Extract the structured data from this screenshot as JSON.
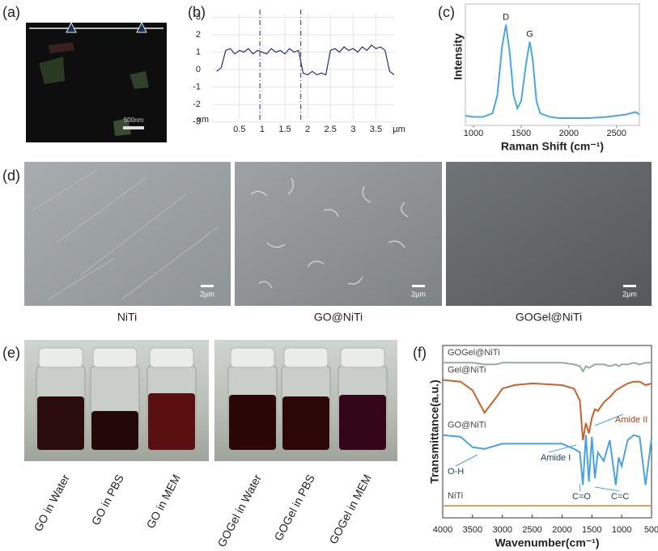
{
  "images": {
    "a": {
      "label": "(a)",
      "scale_bar": "500nm"
    },
    "d": {
      "label": "(d)",
      "items": [
        {
          "caption": "NiTi",
          "scale_bar": "2µm"
        },
        {
          "caption": "GO@NiTi",
          "scale_bar": "2µm"
        },
        {
          "caption": "GOGel@NiTi",
          "scale_bar": "2µm"
        }
      ]
    },
    "e": {
      "label": "(e)",
      "captions": [
        "GO in Water",
        "GO in PBS",
        "GO in MEM",
        "GOGel in Water",
        "GOGel in PBS",
        "GOGel in MEM"
      ]
    }
  },
  "chart_data": [
    {
      "type": "line",
      "panel_label": "(b)",
      "x_label": "µm",
      "y_label": "nm",
      "color": "#2b2f6e",
      "grid": true,
      "x": [
        0.0,
        0.1,
        0.2,
        0.3,
        0.4,
        0.5,
        0.6,
        0.7,
        0.8,
        0.9,
        1.0,
        1.1,
        1.2,
        1.3,
        1.4,
        1.5,
        1.6,
        1.7,
        1.8,
        1.9,
        2.0,
        2.1,
        2.2,
        2.3,
        2.4,
        2.5,
        2.6,
        2.7,
        2.8,
        2.9,
        3.0,
        3.1,
        3.2,
        3.3,
        3.4,
        3.5,
        3.6,
        3.7,
        3.8,
        3.9
      ],
      "values": [
        -0.1,
        0.1,
        1.1,
        1.2,
        0.9,
        1.1,
        1.0,
        1.2,
        0.9,
        1.1,
        1.0,
        0.9,
        1.2,
        1.0,
        1.1,
        0.9,
        1.2,
        1.0,
        1.1,
        -0.2,
        -0.3,
        -0.1,
        -0.3,
        -0.2,
        -0.3,
        1.1,
        1.2,
        1.0,
        1.3,
        1.1,
        1.2,
        1.0,
        1.3,
        1.1,
        1.4,
        1.2,
        1.3,
        1.1,
        -0.1,
        -0.3
      ],
      "markers": [
        0.95,
        1.85
      ],
      "xlim": [
        -0.1,
        3.9
      ],
      "xticks": [
        0.5,
        1,
        1.5,
        2,
        2.5,
        3,
        3.5
      ],
      "ylim": [
        -3.2,
        3.2
      ],
      "yticks": [
        3,
        2,
        1,
        0,
        -1,
        -2,
        -3
      ]
    },
    {
      "type": "line",
      "panel_label": "(c)",
      "x_label": "Raman Shift (cm⁻¹)",
      "y_label": "Intensity",
      "color": "#4aa8e0",
      "peak_labels": [
        "D",
        "G"
      ],
      "x": [
        915,
        1000,
        1100,
        1200,
        1250,
        1300,
        1340,
        1380,
        1420,
        1460,
        1500,
        1550,
        1590,
        1620,
        1660,
        1700,
        1800,
        1900,
        2000,
        2200,
        2400,
        2600,
        2700,
        2740
      ],
      "values": [
        8,
        7,
        7,
        10,
        25,
        65,
        83,
        60,
        25,
        14,
        20,
        50,
        69,
        55,
        20,
        10,
        7,
        6,
        6,
        6,
        7,
        9,
        11,
        9
      ],
      "xlim": [
        915,
        2740
      ],
      "xticks": [
        1000,
        1500,
        2000,
        2500
      ],
      "ylim": [
        0,
        100
      ]
    },
    {
      "type": "line",
      "panel_label": "(f)",
      "x_label": "Wavenumber(cm⁻¹)",
      "y_label": "Transmittance(a.u.)",
      "annotations": [
        "O-H",
        "Amide I",
        "Amide II",
        "C=O",
        "C=C"
      ],
      "x": [
        4000,
        3700,
        3500,
        3300,
        3100,
        3000,
        2800,
        2500,
        2000,
        1800,
        1700,
        1650,
        1600,
        1550,
        1500,
        1450,
        1400,
        1300,
        1200,
        1100,
        1050,
        1000,
        900,
        800,
        700,
        600,
        500
      ],
      "series": [
        {
          "name": "GOGel@NiTi",
          "color": "#8fae9f",
          "values": [
            90,
            90,
            90,
            89,
            89,
            90,
            90,
            90,
            90,
            89,
            88,
            85,
            88,
            87,
            88,
            89,
            89,
            89,
            88,
            89,
            88,
            89,
            89,
            90,
            89,
            90,
            90
          ]
        },
        {
          "name": "Gel@NiTi",
          "color": "#c8622a",
          "values": [
            80,
            79,
            74,
            61,
            70,
            75,
            77,
            78,
            77,
            75,
            68,
            45,
            55,
            49,
            58,
            63,
            62,
            67,
            70,
            74,
            75,
            76,
            78,
            79,
            79,
            77,
            78
          ]
        },
        {
          "name": "GO@NiTi",
          "color": "#4aa3df",
          "values": [
            48,
            47,
            41,
            40,
            42,
            43,
            43,
            43,
            43,
            40,
            38,
            19,
            48,
            21,
            47,
            23,
            38,
            33,
            45,
            19,
            35,
            30,
            45,
            48,
            47,
            19,
            46
          ]
        },
        {
          "name": "NiTi",
          "color": "#c9a25e",
          "values": [
            7,
            7,
            7,
            7,
            7,
            7,
            7,
            7,
            7,
            7,
            7,
            7,
            7,
            7,
            7,
            7,
            7,
            7,
            7,
            7,
            7,
            7,
            7,
            7,
            7,
            7,
            7
          ]
        }
      ],
      "xlim": [
        4000,
        500
      ],
      "xticks": [
        4000,
        3500,
        3000,
        2500,
        2000,
        1500,
        1000,
        500
      ],
      "ylim": [
        0,
        100
      ]
    }
  ]
}
